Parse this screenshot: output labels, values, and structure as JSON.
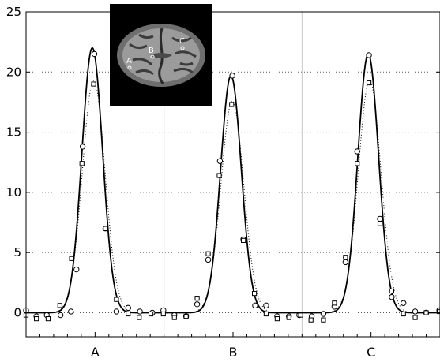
{
  "chart_data": {
    "type": "line",
    "title": "",
    "xlabel": "",
    "ylabel": "",
    "ylim": [
      -2,
      25
    ],
    "yticks": [
      0,
      5,
      10,
      15,
      20,
      25
    ],
    "ytick_labels": [
      "0",
      "5",
      "10",
      "15",
      "20",
      "25"
    ],
    "categories": [
      "A",
      "B",
      "C"
    ],
    "x_range": [
      0,
      60
    ],
    "grid": "dotted horizontal lines",
    "panel_separators": [
      20,
      40
    ],
    "series": [
      {
        "style": "solid-line",
        "curves": [
          {
            "region": "A",
            "center": 9.6,
            "amplitude": 22.0,
            "sigma": 1.5
          },
          {
            "region": "B",
            "center": 29.7,
            "amplitude": 19.7,
            "sigma": 1.5
          },
          {
            "region": "C",
            "center": 49.6,
            "amplitude": 21.5,
            "sigma": 1.5
          }
        ]
      },
      {
        "style": "dotted-line",
        "curves": [
          {
            "region": "A",
            "center": 9.8,
            "amplitude": 19.3,
            "sigma": 1.65
          },
          {
            "region": "B",
            "center": 29.9,
            "amplitude": 17.6,
            "sigma": 1.65
          },
          {
            "region": "C",
            "center": 49.8,
            "amplitude": 19.3,
            "sigma": 1.65
          }
        ]
      },
      {
        "style": "circle-markers",
        "points": [
          [
            0,
            0.2
          ],
          [
            1.5,
            -0.3
          ],
          [
            3,
            -0.2
          ],
          [
            5,
            -0.2
          ],
          [
            6.5,
            0.1
          ],
          [
            7.3,
            3.6
          ],
          [
            8.2,
            13.8
          ],
          [
            9.9,
            21.5
          ],
          [
            11.5,
            7.0
          ],
          [
            13.1,
            0.1
          ],
          [
            14.8,
            0.4
          ],
          [
            16.5,
            0.1
          ],
          [
            18.3,
            0.0
          ],
          [
            19.9,
            0.2
          ],
          [
            21.5,
            -0.2
          ],
          [
            23.2,
            -0.3
          ],
          [
            24.8,
            0.7
          ],
          [
            26.4,
            4.4
          ],
          [
            28.1,
            12.6
          ],
          [
            29.9,
            19.7
          ],
          [
            31.5,
            6.1
          ],
          [
            33.2,
            0.6
          ],
          [
            34.8,
            0.6
          ],
          [
            36.4,
            -0.3
          ],
          [
            38.1,
            -0.3
          ],
          [
            39.6,
            -0.2
          ],
          [
            41.4,
            -0.3
          ],
          [
            43.1,
            -0.1
          ],
          [
            44.7,
            0.5
          ],
          [
            46.3,
            4.2
          ],
          [
            48.0,
            13.4
          ],
          [
            49.7,
            21.4
          ],
          [
            51.3,
            7.8
          ],
          [
            53.0,
            1.3
          ],
          [
            54.7,
            0.8
          ],
          [
            56.4,
            0.1
          ],
          [
            58.0,
            0.0
          ],
          [
            59.9,
            0.2
          ]
        ]
      },
      {
        "style": "square-markers",
        "points": [
          [
            0,
            -0.2
          ],
          [
            1.5,
            -0.5
          ],
          [
            3.2,
            -0.5
          ],
          [
            4.9,
            0.6
          ],
          [
            6.6,
            4.5
          ],
          [
            8.1,
            12.4
          ],
          [
            9.8,
            19.0
          ],
          [
            11.5,
            7.0
          ],
          [
            13.1,
            1.1
          ],
          [
            14.8,
            -0.1
          ],
          [
            16.4,
            -0.4
          ],
          [
            18.1,
            -0.1
          ],
          [
            19.9,
            -0.1
          ],
          [
            21.5,
            -0.4
          ],
          [
            23.2,
            -0.3
          ],
          [
            24.8,
            1.2
          ],
          [
            26.4,
            4.9
          ],
          [
            28.0,
            11.4
          ],
          [
            29.8,
            17.3
          ],
          [
            31.5,
            6.0
          ],
          [
            33.1,
            1.6
          ],
          [
            34.8,
            -0.1
          ],
          [
            36.4,
            -0.5
          ],
          [
            38.1,
            -0.4
          ],
          [
            39.8,
            -0.2
          ],
          [
            41.3,
            -0.6
          ],
          [
            43.1,
            -0.6
          ],
          [
            44.7,
            0.8
          ],
          [
            46.3,
            4.6
          ],
          [
            48.0,
            12.4
          ],
          [
            49.7,
            19.1
          ],
          [
            51.3,
            7.4
          ],
          [
            53.0,
            1.8
          ],
          [
            54.7,
            -0.1
          ],
          [
            56.4,
            -0.4
          ],
          [
            58.0,
            0.0
          ],
          [
            59.9,
            0.1
          ]
        ]
      }
    ],
    "inset": {
      "content": "grayscale brain MRI slice",
      "labels": [
        "A",
        "B",
        "C"
      ]
    }
  }
}
